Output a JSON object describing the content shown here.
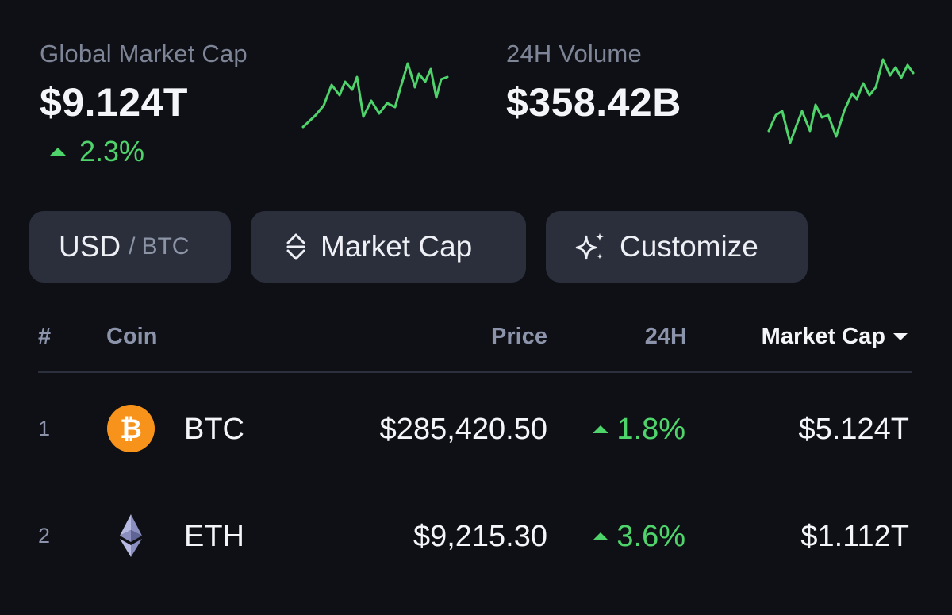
{
  "stats": {
    "market_cap": {
      "label": "Global Market Cap",
      "value": "$9.124T",
      "change": "2.3%",
      "trend": "up"
    },
    "volume": {
      "label": "24H Volume",
      "value": "$358.42B"
    }
  },
  "controls": {
    "currency_active": "USD",
    "currency_separator": "/",
    "currency_alt": "BTC",
    "sort_label": "Market Cap",
    "customize_label": "Customize"
  },
  "table": {
    "headers": {
      "rank": "#",
      "coin": "Coin",
      "price": "Price",
      "change": "24H",
      "market_cap": "Market Cap"
    },
    "sorted_by": "market_cap",
    "sort_direction": "descending",
    "rows": [
      {
        "rank": "1",
        "icon": "bitcoin-icon",
        "symbol": "BTC",
        "price": "$285,420.50",
        "change": "1.8%",
        "market_cap": "$5.124T"
      },
      {
        "rank": "2",
        "icon": "ethereum-icon",
        "symbol": "ETH",
        "price": "$9,215.30",
        "change": "3.6%",
        "market_cap": "$1.112T"
      }
    ]
  },
  "colors": {
    "background": "#0f1015",
    "positive": "#4fd46c",
    "button": "#2a2f3b",
    "bitcoin": "#f7931a"
  }
}
